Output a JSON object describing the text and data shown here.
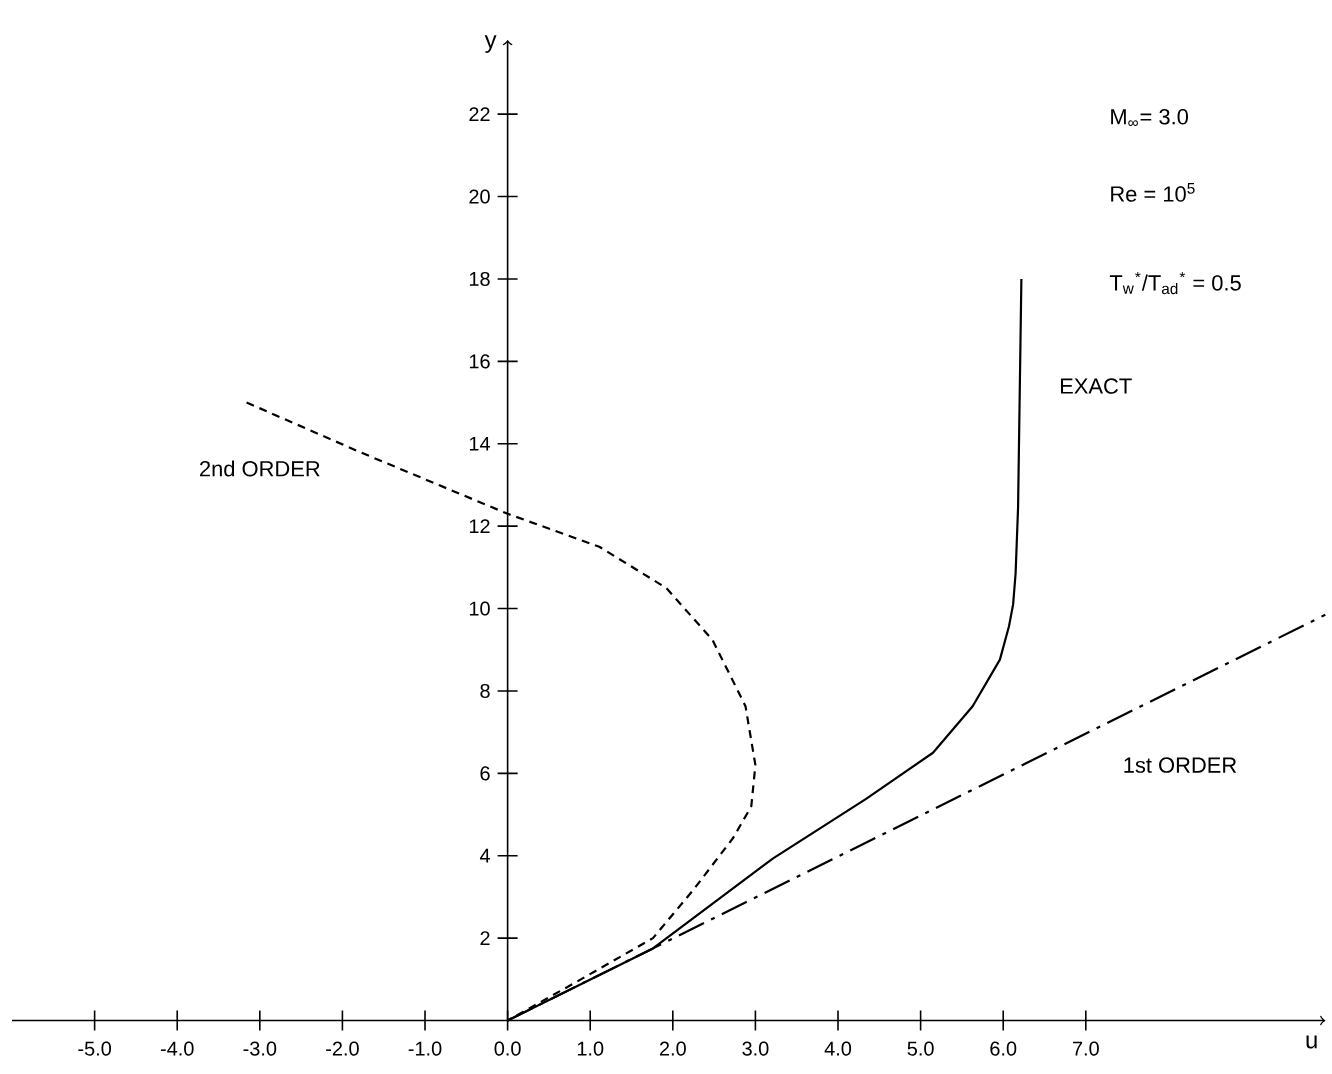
{
  "chart_data": {
    "type": "line",
    "xlabel": "u",
    "ylabel": "y",
    "xlim": [
      -6.0,
      9.9
    ],
    "ylim": [
      0,
      23.8
    ],
    "xticks": [
      {
        "value": -5,
        "label": "-5.0"
      },
      {
        "value": -4,
        "label": "-4.0"
      },
      {
        "value": -3,
        "label": "-3.0"
      },
      {
        "value": -2,
        "label": "-2.0"
      },
      {
        "value": -1,
        "label": "-1.0"
      },
      {
        "value": 0,
        "label": "0.0"
      },
      {
        "value": 1,
        "label": "1.0"
      },
      {
        "value": 2,
        "label": "2.0"
      },
      {
        "value": 3,
        "label": "3.0"
      },
      {
        "value": 4,
        "label": "4.0"
      },
      {
        "value": 5,
        "label": "5.0"
      },
      {
        "value": 6,
        "label": "6.0"
      },
      {
        "value": 7,
        "label": "7.0"
      }
    ],
    "yticks": [
      2,
      4,
      6,
      8,
      10,
      12,
      14,
      16,
      18,
      20,
      22
    ],
    "series": [
      {
        "name": "EXACT",
        "color": "#000000",
        "line_style": "solid",
        "x": [
          0,
          1.76,
          3.21,
          4.34,
          5.15,
          5.63,
          5.96,
          6.07,
          6.12,
          6.15,
          6.18,
          6.22
        ],
        "values": [
          0,
          1.75,
          3.93,
          5.38,
          6.5,
          7.63,
          8.76,
          9.57,
          10.1,
          10.85,
          12.46,
          18.0
        ]
      },
      {
        "name": "1st ORDER",
        "color": "#000000",
        "line_style": "dashdot",
        "x": [
          0,
          9.9
        ],
        "values": [
          0,
          9.85
        ]
      },
      {
        "name": "2nd ORDER",
        "color": "#000000",
        "line_style": "dashed",
        "x": [
          -3.16,
          -1.79,
          0,
          1.11,
          1.92,
          2.48,
          2.88,
          3.0,
          2.95,
          2.73,
          2.24,
          1.76,
          0.8,
          0
        ],
        "values": [
          15.0,
          13.8,
          12.3,
          11.5,
          10.5,
          9.24,
          7.63,
          6.2,
          5.2,
          4.43,
          3.15,
          2.0,
          0.9,
          0
        ]
      }
    ],
    "annotations": [
      "M$_{∞}$= 3.0",
      "Re = 10$^{5}$",
      "T$_{w}$$^{*}$/T$_{ad}$$^{*}$ = 0.5"
    ],
    "grid": false,
    "marker": "none"
  }
}
